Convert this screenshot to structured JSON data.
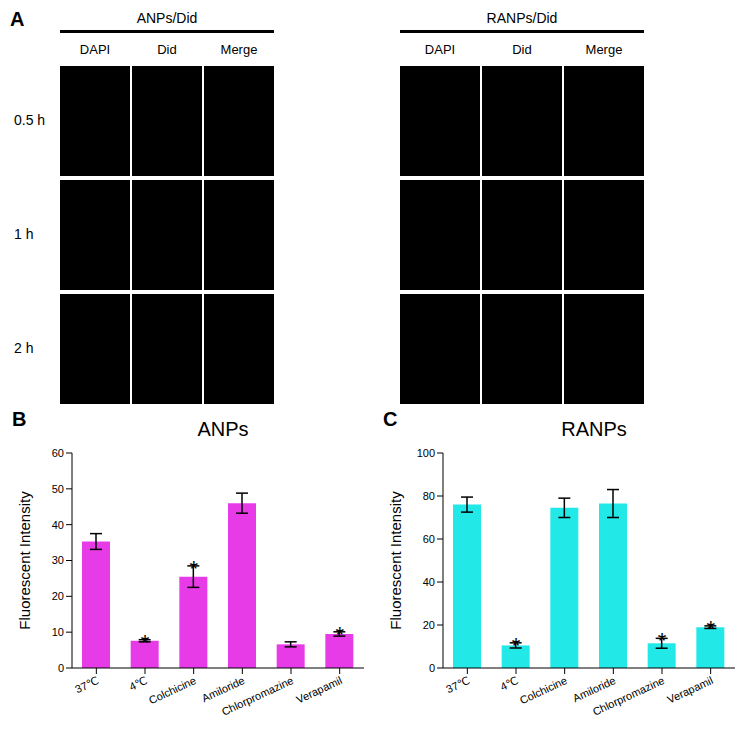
{
  "panel_a": {
    "panel": "A",
    "rows": [
      "0.5 h",
      "1 h",
      "2 h"
    ],
    "groups": [
      {
        "title": "ANPs/Did",
        "columns": [
          "DAPI",
          "Did",
          "Merge"
        ]
      },
      {
        "title": "RANPs/Did",
        "columns": [
          "DAPI",
          "Did",
          "Merge"
        ]
      }
    ]
  },
  "chart_data": [
    {
      "panel": "B",
      "type": "bar",
      "title": "ANPs",
      "y_label": "Fluorescent Intensity",
      "categories": [
        "37℃",
        "4℃",
        "Colchicine",
        "Amiloride",
        "Chlorpromazine",
        "Verapamil"
      ],
      "values": [
        35.3,
        7.6,
        25.5,
        46,
        6.6,
        9.5
      ],
      "errors": [
        2.2,
        0.3,
        3,
        2.8,
        0.7,
        0.6
      ],
      "annotations": [
        null,
        "*",
        "*",
        null,
        null,
        "*"
      ],
      "color": "#e83be8",
      "ylim": [
        0,
        60
      ],
      "yticks": [
        0,
        10,
        20,
        30,
        40,
        50,
        60
      ]
    },
    {
      "panel": "C",
      "type": "bar",
      "title": "RANPs",
      "y_label": "Fluorescent Intensity",
      "categories": [
        "37℃",
        "4℃",
        "Colchicine",
        "Amiloride",
        "Chlorpromazine",
        "Verapamil"
      ],
      "values": [
        76,
        10.5,
        74.5,
        76.5,
        11.5,
        19
      ],
      "errors": [
        3.5,
        1.2,
        4.5,
        6.5,
        2.3,
        0.6
      ],
      "annotations": [
        null,
        "*",
        null,
        null,
        "*",
        "*"
      ],
      "color": "#22e8e8",
      "ylim": [
        0,
        100
      ],
      "yticks": [
        0,
        20,
        40,
        60,
        80,
        100
      ]
    }
  ]
}
